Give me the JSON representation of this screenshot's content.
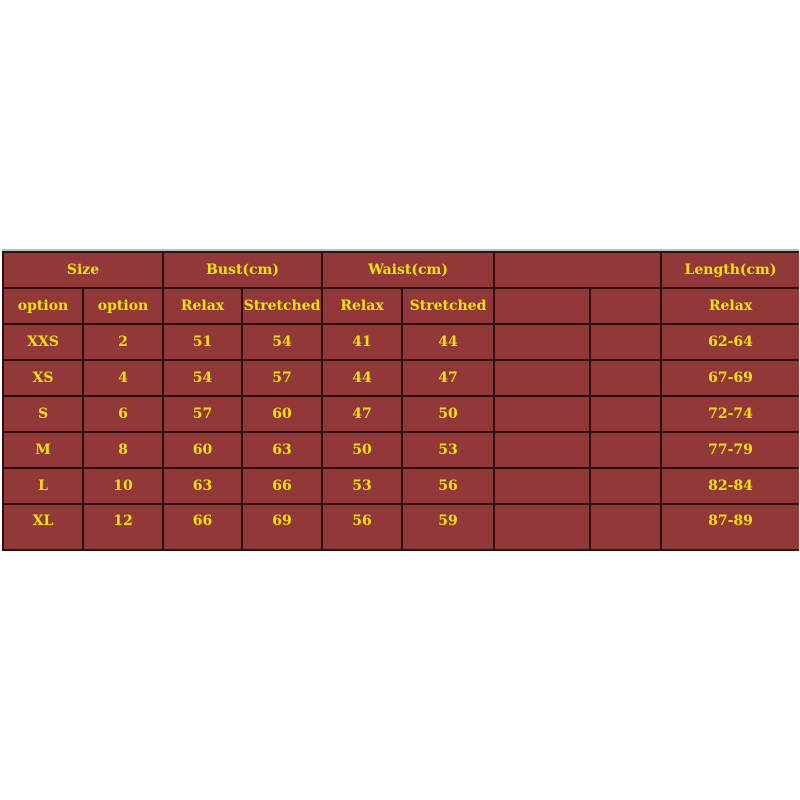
{
  "header": {
    "size": "Size",
    "bust": "Bust(cm)",
    "waist": "Waist(cm)",
    "blank": "",
    "length": "Length(cm)"
  },
  "subheader": [
    "option",
    "option",
    "Relax",
    "Stretched",
    "Relax",
    "Stretched",
    "",
    "",
    "Relax"
  ],
  "rows": [
    [
      "XXS",
      "2",
      "51",
      "54",
      "41",
      "44",
      "",
      "",
      "62-64"
    ],
    [
      "XS",
      "4",
      "54",
      "57",
      "44",
      "47",
      "",
      "",
      "67-69"
    ],
    [
      "S",
      "6",
      "57",
      "60",
      "47",
      "50",
      "",
      "",
      "72-74"
    ],
    [
      "M",
      "8",
      "60",
      "63",
      "50",
      "53",
      "",
      "",
      "77-79"
    ],
    [
      "L",
      "10",
      "63",
      "66",
      "53",
      "56",
      "",
      "",
      "82-84"
    ],
    [
      "XL",
      "12",
      "66",
      "69",
      "56",
      "59",
      "",
      "",
      "87-89"
    ]
  ],
  "colors": {
    "background": "#933838",
    "text": "#f3e10a",
    "border": "#2b1212"
  }
}
